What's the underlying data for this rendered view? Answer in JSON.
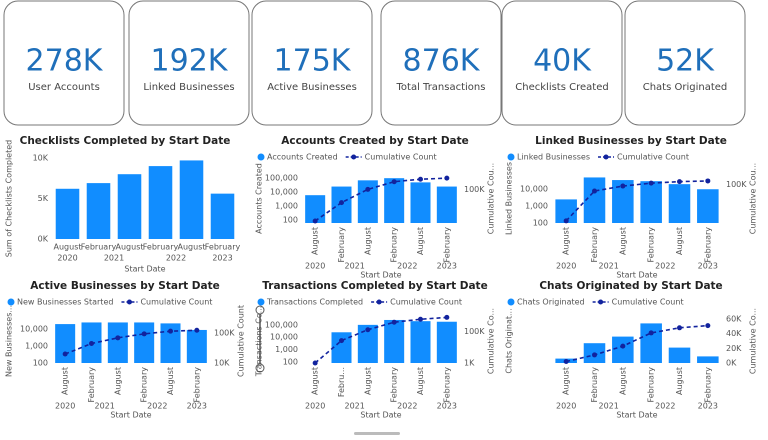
{
  "cards": [
    {
      "value": "278K",
      "label": "User Accounts"
    },
    {
      "value": "192K",
      "label": "Linked Businesses"
    },
    {
      "value": "175K",
      "label": "Active Businesses"
    },
    {
      "value": "876K",
      "label": "Total Transactions"
    },
    {
      "value": "40K",
      "label": "Checklists Created"
    },
    {
      "value": "52K",
      "label": "Chats Originated"
    }
  ],
  "chart_data": [
    {
      "type": "bar",
      "title": "Checklists Completed by Start Date",
      "categories": [
        "August",
        "February",
        "August",
        "February",
        "August",
        "February"
      ],
      "years": [
        "2020",
        "2021",
        "2022",
        "2023"
      ],
      "xlabel": "Start Date",
      "ylabel": "Sum of Checklists Completed",
      "values": [
        6200,
        6900,
        8000,
        9000,
        9700,
        5600
      ],
      "color": "#118dff",
      "ylim": [
        0,
        10000
      ],
      "yticks": [
        {
          "value": 0,
          "label": "0K"
        },
        {
          "value": 5000,
          "label": "5K"
        },
        {
          "value": 10000,
          "label": "10K"
        }
      ]
    },
    {
      "type": "bar_line",
      "title": "Accounts Created by Start Date",
      "categories": [
        "August",
        "February",
        "August",
        "February",
        "August",
        "February"
      ],
      "years": [
        "2020",
        "2021",
        "2022",
        "2023"
      ],
      "xlabel": "Start Date",
      "ylabel": "Accounts Created",
      "y2label": "Cumulative Cou...",
      "series": [
        {
          "name": "Accounts Created",
          "color": "#118dff",
          "values": [
            6000,
            25000,
            70000,
            100000,
            50000,
            25000
          ]
        },
        {
          "name": "Cumulative Count",
          "color": "#12239e",
          "axis": "y2",
          "values": [
            6000,
            31000,
            101000,
            201000,
            251000,
            276000
          ]
        }
      ],
      "log_y": true,
      "ylim": [
        60,
        200000
      ],
      "yticks": [
        100,
        {
          "value": 1000,
          "label": "1,000"
        },
        {
          "value": 10000,
          "label": "10,000"
        },
        {
          "value": 100000,
          "label": "100,000"
        }
      ],
      "log_y2": true,
      "y2lim": [
        5000,
        400000
      ],
      "y2ticks": [
        {
          "value": 100000,
          "label": "100K"
        }
      ]
    },
    {
      "type": "bar_line",
      "title": "Linked Businesses by Start Date",
      "categories": [
        "August",
        "February",
        "August",
        "February",
        "August",
        "February"
      ],
      "years": [
        "2020",
        "2021",
        "2022",
        "2023"
      ],
      "xlabel": "Start Date",
      "ylabel": "Linked Businesses",
      "y2label": "Cumulative Cou...",
      "series": [
        {
          "name": "Linked Businesses",
          "color": "#118dff",
          "values": [
            2500,
            50000,
            35000,
            30000,
            20000,
            10000
          ]
        },
        {
          "name": "Cumulative Count",
          "color": "#12239e",
          "axis": "y2",
          "values": [
            2500,
            52500,
            87500,
            117500,
            137500,
            147500
          ]
        }
      ],
      "log_y": true,
      "ylim": [
        100,
        80000
      ],
      "yticks": [
        100,
        {
          "value": 1000,
          "label": "1,000"
        },
        {
          "value": 10000,
          "label": "10,000"
        }
      ],
      "log_y2": true,
      "y2lim": [
        2000,
        300000
      ],
      "y2ticks": [
        {
          "value": 100000,
          "label": "100K"
        }
      ]
    },
    {
      "type": "bar_line",
      "title": "Active Businesses by Start Date",
      "categories": [
        "August",
        "February",
        "August",
        "February",
        "August",
        "February"
      ],
      "years": [
        "2020",
        "2021",
        "2022",
        "2023"
      ],
      "xlabel": "Start Date",
      "ylabel": "New Businesses...",
      "y2label": "Cumulative Count",
      "series": [
        {
          "name": "New Businesses Started",
          "color": "#118dff",
          "values": [
            20000,
            25000,
            25000,
            25000,
            22000,
            9000
          ]
        },
        {
          "name": "Cumulative Count",
          "color": "#12239e",
          "axis": "y2",
          "values": [
            20000,
            45000,
            70000,
            95000,
            117000,
            126000
          ]
        }
      ],
      "log_y": true,
      "ylim": [
        100,
        40000
      ],
      "yticks": [
        100,
        {
          "value": 1000,
          "label": "1,000"
        },
        {
          "value": 10000,
          "label": "10,000"
        }
      ],
      "log_y2": true,
      "y2lim": [
        10000,
        300000
      ],
      "y2ticks": [
        {
          "value": 10000,
          "label": "10K"
        },
        {
          "value": 100000,
          "label": "100K"
        }
      ]
    },
    {
      "type": "bar_line",
      "title": "Transactions Completed by Start Date",
      "categories": [
        "August",
        "Febru...",
        "August",
        "February",
        "August",
        "February"
      ],
      "years": [
        "2020",
        "2021",
        "2022",
        "2023"
      ],
      "xlabel": "Start Date",
      "ylabel": "Transactions Co...",
      "y2label": "Cumulative Co...",
      "series": [
        {
          "name": "Transactions Completed",
          "color": "#118dff",
          "values": [
            null,
            25000,
            100000,
            250000,
            200000,
            180000
          ]
        },
        {
          "name": "Cumulative Count",
          "color": "#12239e",
          "axis": "y2",
          "values": [
            1000,
            26000,
            126000,
            376000,
            576000,
            756000
          ]
        }
      ],
      "log_y": true,
      "ylim": [
        80,
        300000
      ],
      "yticks": [
        100,
        {
          "value": 1000,
          "label": "1,000"
        },
        {
          "value": 10000,
          "label": "10,000"
        },
        {
          "value": 100000,
          "label": "100,000"
        }
      ],
      "log_y2": true,
      "y2lim": [
        1000,
        600000
      ],
      "y2ticks": [
        {
          "value": 1000,
          "label": "1K"
        },
        {
          "value": 100000,
          "label": "100K"
        }
      ]
    },
    {
      "type": "bar_line",
      "title": "Chats Originated by Start Date",
      "categories": [
        "August",
        "February",
        "August",
        "February",
        "August",
        "February"
      ],
      "years": [
        "2020",
        "2021",
        "2022",
        "2023"
      ],
      "xlabel": "Start Date",
      "ylabel": "Chats Originat...",
      "y2label": "Cumulative Co...",
      "series": [
        {
          "name": "Chats Originated",
          "color": "#118dff",
          "values": [
            2000,
            9000,
            12000,
            18000,
            7000,
            3000
          ]
        },
        {
          "name": "Cumulative Count",
          "color": "#12239e",
          "axis": "y2",
          "values": [
            2000,
            11000,
            23000,
            41000,
            48000,
            51000
          ]
        }
      ],
      "ylim": [
        0,
        20000
      ],
      "y2lim": [
        0,
        60000
      ],
      "y2ticks": [
        {
          "value": 0,
          "label": "0K"
        },
        {
          "value": 20000,
          "label": "20K"
        },
        {
          "value": 40000,
          "label": "40K"
        },
        {
          "value": 60000,
          "label": "60K"
        }
      ]
    }
  ]
}
